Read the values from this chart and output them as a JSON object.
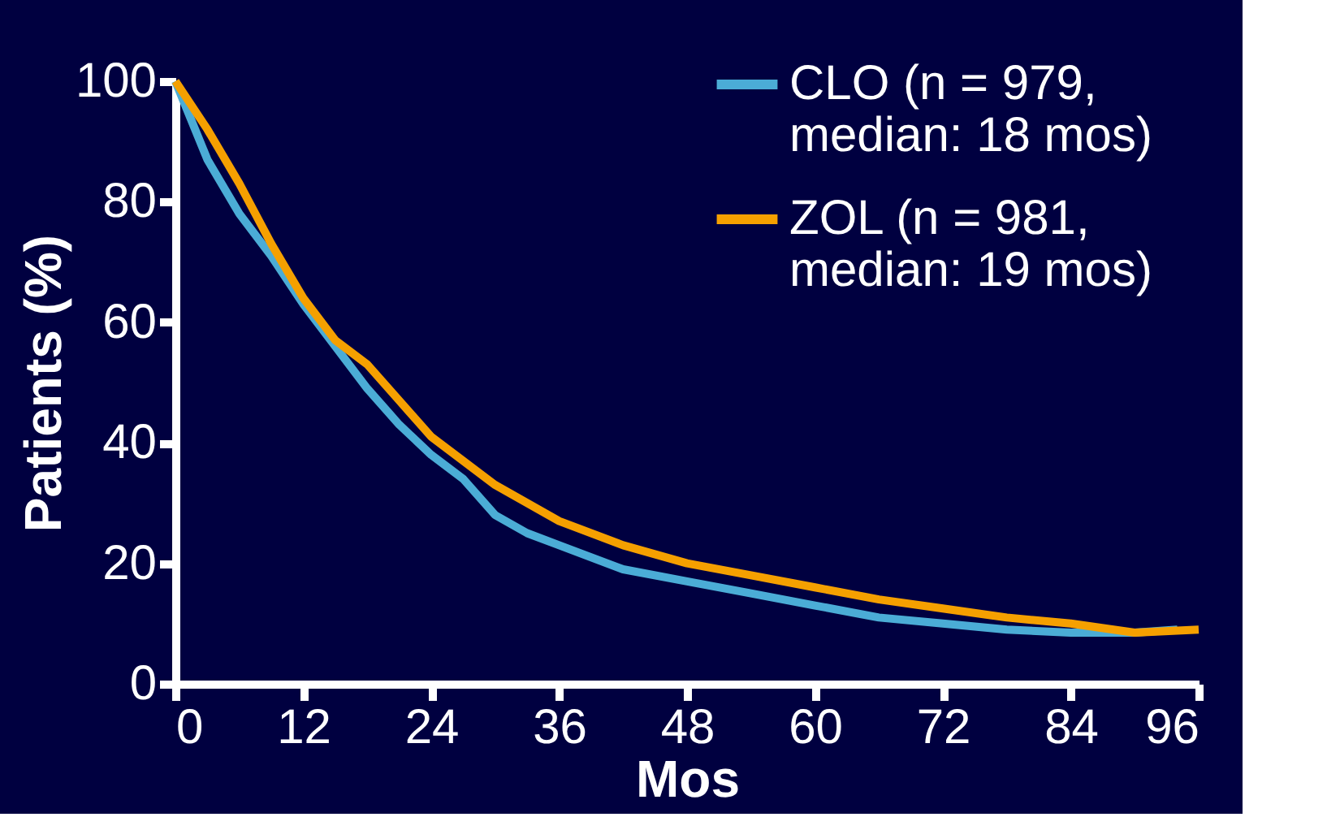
{
  "chart_data": {
    "type": "line",
    "xlabel": "Mos",
    "ylabel": "Patients (%)",
    "xlim": [
      0,
      96
    ],
    "xticks": [
      0,
      12,
      24,
      36,
      48,
      60,
      72,
      84,
      96
    ],
    "ylim": [
      0,
      100
    ],
    "yticks": [
      0,
      20,
      40,
      60,
      80,
      100
    ],
    "grid": false,
    "legend": "top right",
    "marker": "none",
    "line_style": "solid",
    "series": [
      {
        "name": "CLO (n = 979,\nmedian: 18 mos)",
        "color": "#4bacd6",
        "x": [
          0,
          3,
          6,
          9,
          12,
          15,
          18,
          21,
          24,
          27,
          30,
          33,
          36,
          42,
          48,
          54,
          60,
          66,
          72,
          78,
          84,
          90,
          94
        ],
        "values": [
          100,
          87,
          78,
          71,
          63,
          56,
          49,
          43,
          38,
          34,
          28,
          25,
          23,
          19,
          17,
          15,
          13,
          11,
          10,
          9,
          8.5,
          8.5,
          9
        ]
      },
      {
        "name": "ZOL (n = 981,\nmedian: 19 mos)",
        "color": "#f5a000",
        "x": [
          0,
          3,
          6,
          9,
          12,
          15,
          18,
          21,
          24,
          27,
          30,
          33,
          36,
          42,
          48,
          54,
          60,
          66,
          72,
          78,
          84,
          90,
          96
        ],
        "values": [
          100,
          92,
          83,
          73,
          64,
          57,
          53,
          47,
          41,
          37,
          33,
          30,
          27,
          23,
          20,
          18,
          16,
          14,
          12.5,
          11,
          10,
          8.5,
          9
        ]
      }
    ]
  }
}
